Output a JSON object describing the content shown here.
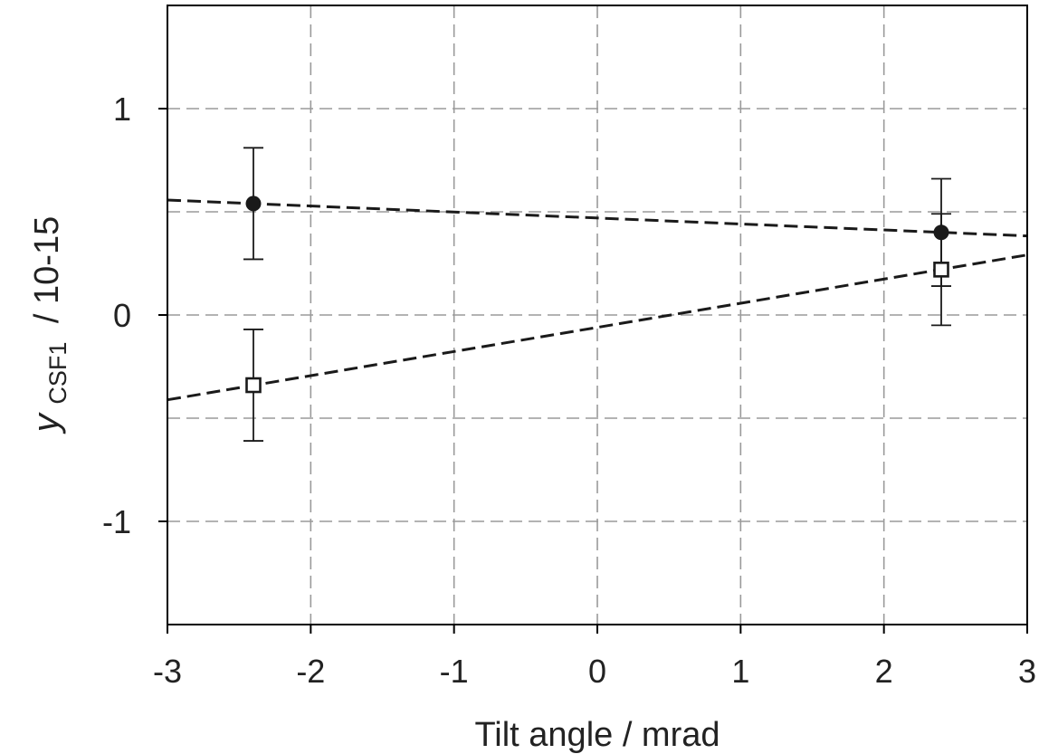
{
  "chart_data": {
    "type": "scatter",
    "title": "",
    "xlabel": "Tilt angle / mrad",
    "ylabel": {
      "symbol": "y",
      "subscript": "CSF1",
      "unit": "/ 10-15"
    },
    "xlim": [
      -3,
      3
    ],
    "ylim": [
      -1.5,
      1.5
    ],
    "x_ticks": [
      -3,
      -2,
      -1,
      0,
      1,
      2,
      3
    ],
    "y_ticks": [
      -1,
      0,
      1
    ],
    "x_tick_labels": [
      "-3",
      "-2",
      "-1",
      "0",
      "1",
      "2",
      "3"
    ],
    "y_tick_labels": [
      "-1",
      "0",
      "1"
    ],
    "grid_x": [
      -2,
      -1,
      0,
      1,
      2
    ],
    "grid_y": [
      -1,
      -0.5,
      0,
      0.5,
      1
    ],
    "grid": true,
    "series": [
      {
        "marker": "filled-circle",
        "points": [
          {
            "x": -2.4,
            "y": 0.54,
            "err": 0.27
          },
          {
            "x": 2.4,
            "y": 0.4,
            "err": 0.26
          }
        ],
        "fit": {
          "slope": -0.029,
          "intercept": 0.47
        }
      },
      {
        "marker": "open-square",
        "points": [
          {
            "x": -2.4,
            "y": -0.34,
            "err": 0.27
          },
          {
            "x": 2.4,
            "y": 0.22,
            "err": 0.27
          }
        ],
        "fit": {
          "slope": 0.117,
          "intercept": -0.06
        }
      }
    ],
    "colors": {
      "axis": "#000000",
      "grid": "#9a9a9a",
      "series": "#1a1a1a"
    }
  }
}
